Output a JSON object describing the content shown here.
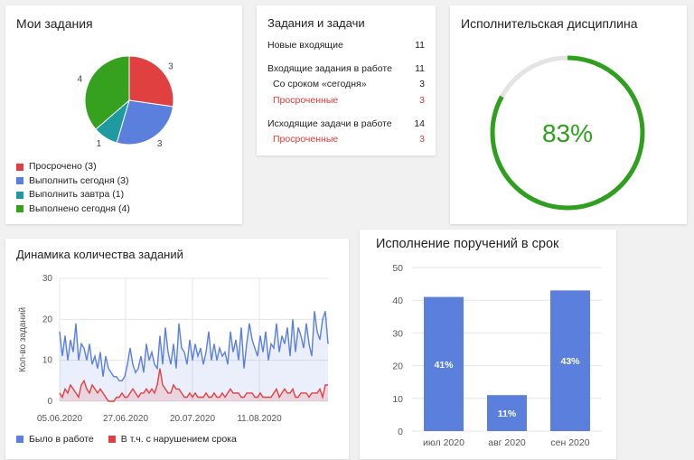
{
  "my_tasks": {
    "title": "Мои задания",
    "slices": [
      {
        "label": "Просрочено (3)",
        "value": 3,
        "color": "#e04040"
      },
      {
        "label": "Выполнить сегодня (3)",
        "value": 3,
        "color": "#5b7fdc"
      },
      {
        "label": "Выполнить завтра (1)",
        "value": 1,
        "color": "#1f9aa0"
      },
      {
        "label": "Выполнено сегодня (4)",
        "value": 4,
        "color": "#36a11f"
      }
    ],
    "slice_labels": [
      "3",
      "3",
      "1",
      "4"
    ]
  },
  "tasks_summary": {
    "title": "Задания и задачи",
    "rows": [
      {
        "label": "Новые входящие",
        "value": "11"
      },
      {
        "label": "Входящие задания в работе",
        "value": "11"
      },
      {
        "label": "Со сроком «сегодня»",
        "value": "3"
      },
      {
        "label": "Просроченные",
        "value": "3"
      },
      {
        "label": "Исходящие задачи в работе",
        "value": "14"
      },
      {
        "label": "Просроченные",
        "value": "3"
      }
    ]
  },
  "discipline": {
    "title": "Исполнительская дисциплина",
    "percent": 83,
    "value_text": "83%",
    "color": "#2ea01e"
  },
  "dynamics": {
    "title": "Динамика количества заданий",
    "legend": [
      "Было в работе",
      "В т.ч. с нарушением срока"
    ],
    "colors": {
      "total": "#5b7fdc",
      "overdue": "#e04040"
    }
  },
  "on_time": {
    "title": "Исполнение поручений в срок",
    "color": "#5b7fdc"
  },
  "chart_data": [
    {
      "type": "pie",
      "title": "Мои задания",
      "categories": [
        "Просрочено (3)",
        "Выполнить сегодня (3)",
        "Выполнить завтра (1)",
        "Выполнено сегодня (4)"
      ],
      "values": [
        3,
        3,
        1,
        4
      ]
    },
    {
      "type": "area",
      "title": "Динамика количества заданий",
      "ylabel": "Кол-во заданий",
      "ylim": [
        0,
        30
      ],
      "yticks": [
        0,
        10,
        20,
        30
      ],
      "xticks": [
        "05.06.2020",
        "27.06.2020",
        "20.07.2020",
        "11.08.2020"
      ],
      "grid": true,
      "legend_position": "bottom",
      "series": [
        {
          "name": "Было в работе",
          "values": [
            17,
            11,
            16,
            10,
            15,
            12,
            19,
            10,
            14,
            13,
            10,
            14,
            9,
            11,
            8,
            12,
            6,
            11,
            8,
            7,
            6,
            6,
            5,
            5,
            6,
            9,
            13,
            9,
            7,
            8,
            11,
            7,
            14,
            10,
            12,
            9,
            8,
            16,
            9,
            18,
            12,
            9,
            14,
            8,
            19,
            13,
            12,
            9,
            15,
            10,
            14,
            11,
            13,
            9,
            12,
            17,
            10,
            14,
            10,
            13,
            11,
            12,
            9,
            17,
            12,
            15,
            10,
            18,
            8,
            14,
            19,
            15,
            13,
            11,
            16,
            12,
            17,
            10,
            14,
            13,
            19,
            12,
            16,
            14,
            18,
            11,
            20,
            12,
            18,
            16,
            13,
            19,
            14,
            11,
            22,
            17,
            15,
            20,
            22,
            14
          ]
        },
        {
          "name": "В т.ч. с нарушением срока",
          "values": [
            2,
            1,
            3,
            2,
            4,
            3,
            2,
            1,
            4,
            5,
            3,
            2,
            4,
            3,
            2,
            3,
            2,
            1,
            0,
            0,
            0,
            1,
            1,
            2,
            1,
            1,
            2,
            3,
            2,
            1,
            2,
            2,
            3,
            2,
            3,
            2,
            4,
            8,
            4,
            3,
            2,
            2,
            4,
            3,
            3,
            2,
            1,
            1,
            2,
            1,
            2,
            1,
            1,
            1,
            2,
            1,
            1,
            2,
            1,
            1,
            2,
            1,
            2,
            3,
            2,
            2,
            2,
            1,
            1,
            2,
            2,
            2,
            1,
            1,
            2,
            1,
            1,
            1,
            1,
            2,
            3,
            1,
            2,
            3,
            2,
            2,
            3,
            1,
            1,
            2,
            2,
            2,
            1,
            2,
            2,
            2,
            3,
            1,
            4,
            4
          ]
        }
      ]
    },
    {
      "type": "bar",
      "title": "Исполнение поручений в срок",
      "categories": [
        "июл 2020",
        "авг 2020",
        "сен 2020"
      ],
      "values": [
        41,
        11,
        43
      ],
      "value_labels": [
        "41%",
        "11%",
        "43%"
      ],
      "ylim": [
        0,
        50
      ],
      "yticks": [
        0,
        10,
        20,
        30,
        40,
        50
      ],
      "grid": true
    }
  ]
}
